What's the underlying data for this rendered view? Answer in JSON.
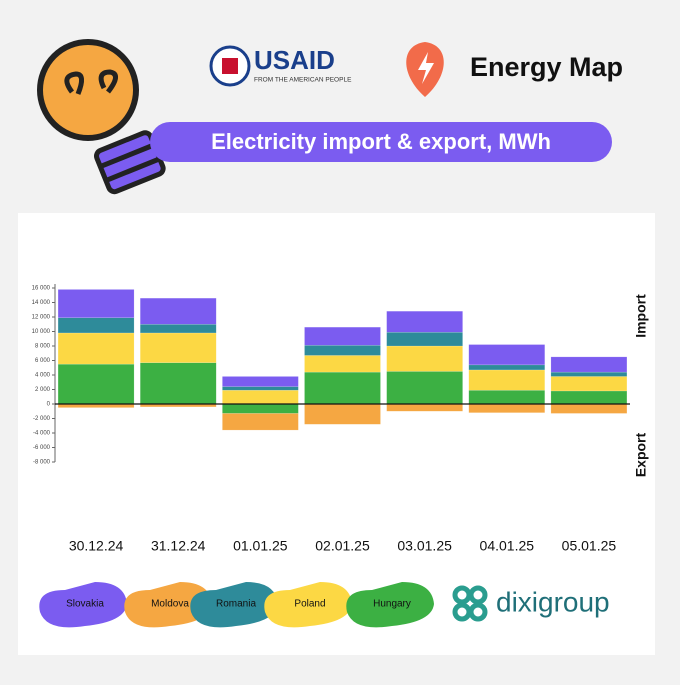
{
  "header": {
    "usaid": "USAID",
    "usaid_sub": "FROM THE AMERICAN PEOPLE",
    "brand": "Energy Map"
  },
  "footer": {
    "logo": "dixigroup"
  },
  "chart_data": {
    "type": "bar",
    "stacked": true,
    "title": "Electricity import & export, MWh",
    "y_label_top": "Import",
    "y_label_bottom": "Export",
    "categories": [
      "30.12.24",
      "31.12.24",
      "01.01.25",
      "02.01.25",
      "03.01.25",
      "04.01.25",
      "05.01.25"
    ],
    "series": [
      {
        "name": "Slovakia",
        "color": "#7b5cf0",
        "values": [
          3900,
          3600,
          1400,
          2500,
          2900,
          2800,
          2100
        ]
      },
      {
        "name": "Moldova",
        "color": "#f5a742",
        "values": [
          -500,
          -400,
          -2300,
          -2800,
          -1000,
          -1200,
          -1300
        ]
      },
      {
        "name": "Romania",
        "color": "#2e8b9a",
        "values": [
          2100,
          1200,
          500,
          1400,
          1900,
          700,
          600
        ]
      },
      {
        "name": "Poland",
        "color": "#fcd844",
        "values": [
          4300,
          4100,
          1900,
          2300,
          3500,
          2800,
          2000
        ]
      },
      {
        "name": "Hungary",
        "color": "#3cb043",
        "values": [
          5500,
          5700,
          -1300,
          4400,
          4500,
          1900,
          1800
        ]
      }
    ],
    "ylim": [
      -8000,
      16000
    ],
    "yticks": [
      {
        "value": -8000,
        "label": "-8 000"
      },
      {
        "value": -6000,
        "label": "-6 000"
      },
      {
        "value": -4000,
        "label": "-4 000"
      },
      {
        "value": -2000,
        "label": "-2 000"
      },
      0,
      {
        "value": 2000,
        "label": "2 000"
      },
      {
        "value": 4000,
        "label": "4 000"
      },
      {
        "value": 6000,
        "label": "6 000"
      },
      {
        "value": 8000,
        "label": "8 000"
      },
      {
        "value": 10000,
        "label": "10 000"
      },
      {
        "value": 12000,
        "label": "12 000"
      },
      {
        "value": 14000,
        "label": "14 000"
      },
      {
        "value": 16000,
        "label": "16 000"
      }
    ]
  }
}
